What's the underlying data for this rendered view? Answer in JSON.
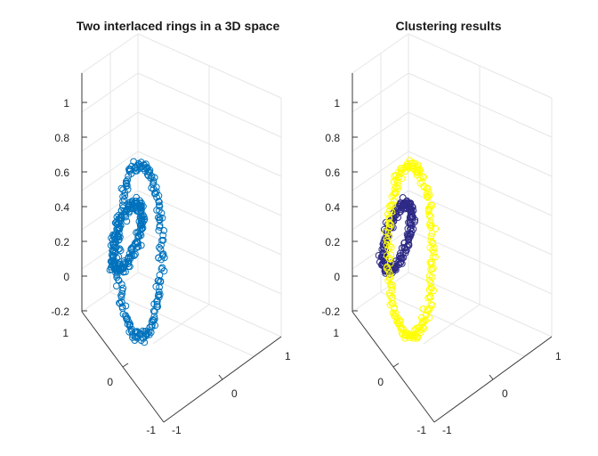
{
  "chart_data": [
    {
      "type": "scatter",
      "title": "Two interlaced rings in a 3D space",
      "zticks": [
        "1",
        "0.8",
        "0.6",
        "0.4",
        "0.2",
        "0",
        "-0.2"
      ],
      "xticks": [
        "-1",
        "0",
        "1"
      ],
      "yticks": [
        "1",
        "0",
        "-1"
      ],
      "zlim": [
        -0.2,
        1
      ],
      "grid": true,
      "marker": "o",
      "series": [
        {
          "color": "#0072bd",
          "ring": {
            "center": [
              0.05,
              0.05,
              0.55
            ],
            "radius": 0.33,
            "plane": "xy"
          }
        },
        {
          "color": "#0072bd",
          "ring": {
            "center": [
              0.2,
              0.2,
              0.47
            ],
            "radius": 0.47,
            "plane": "xz"
          }
        }
      ]
    },
    {
      "type": "scatter",
      "title": "Clustering results",
      "zticks": [
        "1",
        "0.8",
        "0.6",
        "0.4",
        "0.2",
        "0",
        "-0.2"
      ],
      "xticks": [
        "-1",
        "0",
        "1"
      ],
      "yticks": [
        "1",
        "0",
        "-1"
      ],
      "zlim": [
        -0.2,
        1
      ],
      "grid": true,
      "marker": "o",
      "series": [
        {
          "color": "#2e2a86",
          "ring": {
            "center": [
              0.05,
              0.05,
              0.55
            ],
            "radius": 0.33,
            "plane": "xy"
          }
        },
        {
          "color": "#ffff00",
          "ring": {
            "center": [
              0.2,
              0.2,
              0.47
            ],
            "radius": 0.47,
            "plane": "xz"
          }
        }
      ]
    }
  ]
}
